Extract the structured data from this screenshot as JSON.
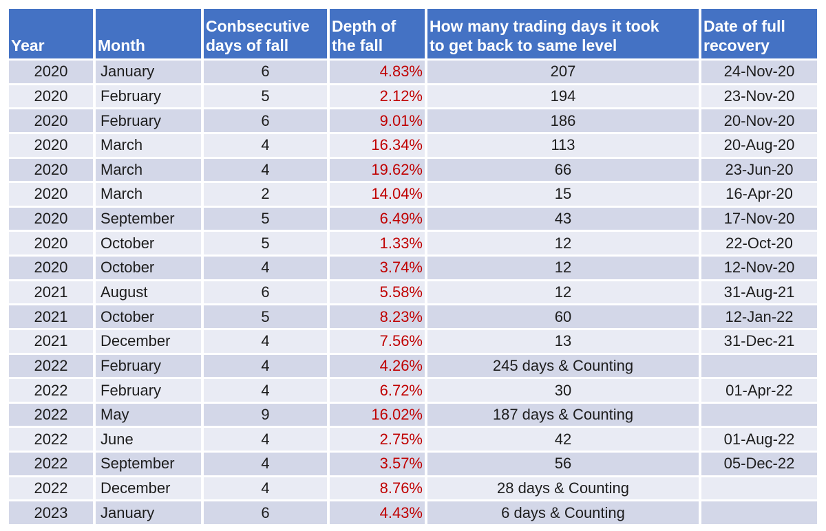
{
  "colors": {
    "header_bg": "#4472C4",
    "header_text": "#ffffff",
    "band_dark": "#D3D7E8",
    "band_light": "#E9EBF4",
    "depth_text": "#C00000",
    "body_text": "#1d1d1d",
    "gridline": "#ffffff"
  },
  "table": {
    "columns": [
      {
        "id": "year",
        "label": "Year"
      },
      {
        "id": "month",
        "label": "Month"
      },
      {
        "id": "consecutive",
        "label": "Conbsecutive\ndays of fall"
      },
      {
        "id": "depth",
        "label": "Depth of\nthe fall"
      },
      {
        "id": "trading",
        "label": "How many trading days it took\nto get back to same level"
      },
      {
        "id": "recovery",
        "label": "Date of full\nrecovery"
      }
    ],
    "rows": [
      {
        "year": "2020",
        "month": "January",
        "consecutive": "6",
        "depth": "4.83%",
        "trading": "207",
        "recovery": "24-Nov-20"
      },
      {
        "year": "2020",
        "month": "February",
        "consecutive": "5",
        "depth": "2.12%",
        "trading": "194",
        "recovery": "23-Nov-20"
      },
      {
        "year": "2020",
        "month": "February",
        "consecutive": "6",
        "depth": "9.01%",
        "trading": "186",
        "recovery": "20-Nov-20"
      },
      {
        "year": "2020",
        "month": "March",
        "consecutive": "4",
        "depth": "16.34%",
        "trading": "113",
        "recovery": "20-Aug-20"
      },
      {
        "year": "2020",
        "month": "March",
        "consecutive": "4",
        "depth": "19.62%",
        "trading": "66",
        "recovery": "23-Jun-20"
      },
      {
        "year": "2020",
        "month": "March",
        "consecutive": "2",
        "depth": "14.04%",
        "trading": "15",
        "recovery": "16-Apr-20"
      },
      {
        "year": "2020",
        "month": "September",
        "consecutive": "5",
        "depth": "6.49%",
        "trading": "43",
        "recovery": "17-Nov-20"
      },
      {
        "year": "2020",
        "month": "October",
        "consecutive": "5",
        "depth": "1.33%",
        "trading": "12",
        "recovery": "22-Oct-20"
      },
      {
        "year": "2020",
        "month": "October",
        "consecutive": "4",
        "depth": "3.74%",
        "trading": "12",
        "recovery": "12-Nov-20"
      },
      {
        "year": "2021",
        "month": "August",
        "consecutive": "6",
        "depth": "5.58%",
        "trading": "12",
        "recovery": "31-Aug-21"
      },
      {
        "year": "2021",
        "month": "October",
        "consecutive": "5",
        "depth": "8.23%",
        "trading": "60",
        "recovery": "12-Jan-22"
      },
      {
        "year": "2021",
        "month": "December",
        "consecutive": "4",
        "depth": "7.56%",
        "trading": "13",
        "recovery": "31-Dec-21"
      },
      {
        "year": "2022",
        "month": "February",
        "consecutive": "4",
        "depth": "4.26%",
        "trading": "245 days & Counting",
        "recovery": ""
      },
      {
        "year": "2022",
        "month": "February",
        "consecutive": "4",
        "depth": "6.72%",
        "trading": "30",
        "recovery": "01-Apr-22"
      },
      {
        "year": "2022",
        "month": "May",
        "consecutive": "9",
        "depth": "16.02%",
        "trading": "187 days & Counting",
        "recovery": ""
      },
      {
        "year": "2022",
        "month": "June",
        "consecutive": "4",
        "depth": "2.75%",
        "trading": "42",
        "recovery": "01-Aug-22"
      },
      {
        "year": "2022",
        "month": "September",
        "consecutive": "4",
        "depth": "3.57%",
        "trading": "56",
        "recovery": "05-Dec-22"
      },
      {
        "year": "2022",
        "month": "December",
        "consecutive": "4",
        "depth": "8.76%",
        "trading": "28 days & Counting",
        "recovery": ""
      },
      {
        "year": "2023",
        "month": "January",
        "consecutive": "6",
        "depth": "4.43%",
        "trading": "6 days & Counting",
        "recovery": ""
      }
    ]
  }
}
